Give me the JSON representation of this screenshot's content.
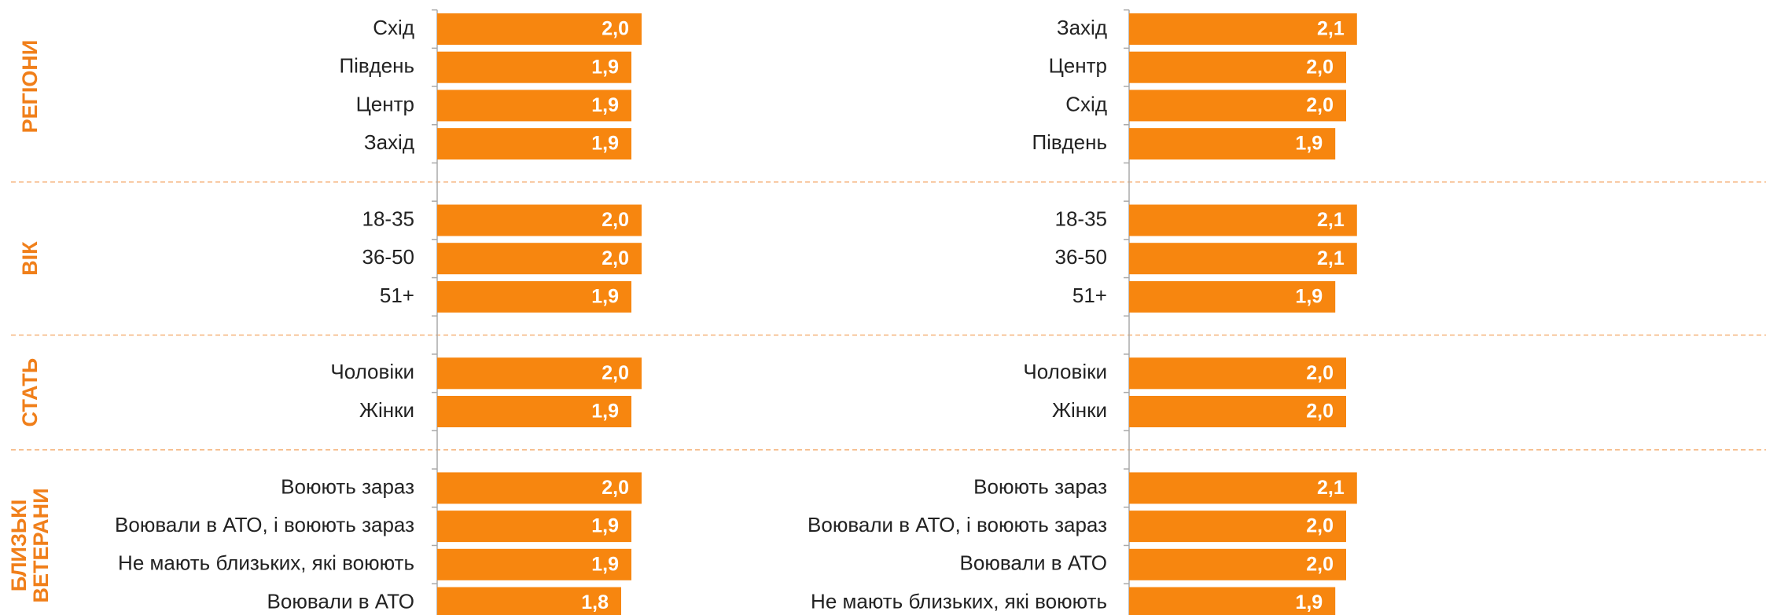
{
  "section_labels": [
    [
      "РЕГІОНИ"
    ],
    [
      "ВІК"
    ],
    [
      "СТАТЬ"
    ],
    [
      "БЛИЗЬКІ",
      "ВЕТЕРАНИ"
    ]
  ],
  "chart_data": [
    {
      "type": "bar",
      "orientation": "horizontal",
      "color": "#f7860f",
      "xlim": [
        0,
        3
      ],
      "groups": [
        {
          "categories": [
            "Схід",
            "Південь",
            "Центр",
            "Захід"
          ],
          "values": [
            2.0,
            1.9,
            1.9,
            1.9
          ],
          "value_labels": [
            "2,0",
            "1,9",
            "1,9",
            "1,9"
          ]
        },
        {
          "categories": [
            "18-35",
            "36-50",
            "51+"
          ],
          "values": [
            2.0,
            2.0,
            1.9
          ],
          "value_labels": [
            "2,0",
            "2,0",
            "1,9"
          ]
        },
        {
          "categories": [
            "Чоловіки",
            "Жінки"
          ],
          "values": [
            2.0,
            1.9
          ],
          "value_labels": [
            "2,0",
            "1,9"
          ]
        },
        {
          "categories": [
            "Воюють зараз",
            "Воювали в АТО, і воюють зараз",
            "Не мають близьких, які воюють",
            "Воювали в АТО"
          ],
          "values": [
            2.0,
            1.9,
            1.9,
            1.8
          ],
          "value_labels": [
            "2,0",
            "1,9",
            "1,9",
            "1,8"
          ]
        }
      ]
    },
    {
      "type": "bar",
      "orientation": "horizontal",
      "color": "#f7860f",
      "xlim": [
        0,
        3
      ],
      "groups": [
        {
          "categories": [
            "Захід",
            "Центр",
            "Схід",
            "Південь"
          ],
          "values": [
            2.1,
            2.0,
            2.0,
            1.9
          ],
          "value_labels": [
            "2,1",
            "2,0",
            "2,0",
            "1,9"
          ]
        },
        {
          "categories": [
            "18-35",
            "36-50",
            "51+"
          ],
          "values": [
            2.1,
            2.1,
            1.9
          ],
          "value_labels": [
            "2,1",
            "2,1",
            "1,9"
          ]
        },
        {
          "categories": [
            "Чоловіки",
            "Жінки"
          ],
          "values": [
            2.0,
            2.0
          ],
          "value_labels": [
            "2,0",
            "2,0"
          ]
        },
        {
          "categories": [
            "Воюють зараз",
            "Воювали в АТО, і воюють зараз",
            "Воювали в АТО",
            "Не мають близьких, які воюють"
          ],
          "values": [
            2.1,
            2.0,
            2.0,
            1.9
          ],
          "value_labels": [
            "2,1",
            "2,0",
            "2,0",
            "1,9"
          ]
        }
      ]
    }
  ]
}
